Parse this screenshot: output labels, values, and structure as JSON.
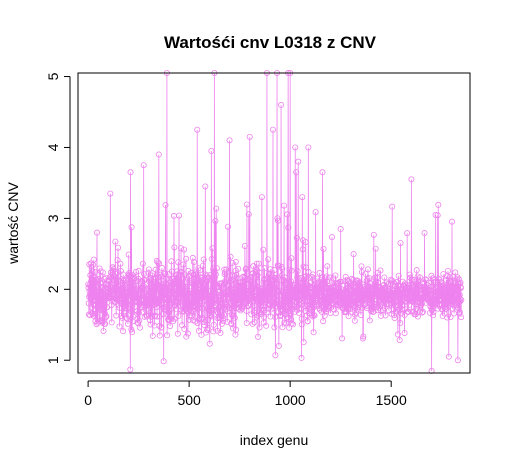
{
  "chart_data": {
    "type": "line",
    "title": "Wartośći cnv L0318 z CNV",
    "xlabel": "index genu",
    "ylabel": "wartość CNV",
    "xlim": [
      -50,
      1890
    ],
    "ylim": [
      0.82,
      5.05
    ],
    "x_ticks": [
      0,
      500,
      1000,
      1500
    ],
    "x_tick_labels": [
      "0",
      "500",
      "1000",
      "1500"
    ],
    "y_ticks": [
      1,
      2,
      3,
      4,
      5
    ],
    "y_tick_labels": [
      "1",
      "2",
      "3",
      "4",
      "5"
    ],
    "series": [
      {
        "n_points": 1847,
        "x_start": 1,
        "x_end": 1847,
        "baseline": 1.92,
        "color": "#ee82ee",
        "marker": "open-circle",
        "line": true,
        "notable_points": [
          {
            "x": 110,
            "y": 3.35
          },
          {
            "x": 210,
            "y": 3.65
          },
          {
            "x": 275,
            "y": 3.75
          },
          {
            "x": 350,
            "y": 3.9
          },
          {
            "x": 390,
            "y": 5.05
          },
          {
            "x": 540,
            "y": 4.25
          },
          {
            "x": 580,
            "y": 3.45
          },
          {
            "x": 610,
            "y": 3.95
          },
          {
            "x": 625,
            "y": 5.05
          },
          {
            "x": 700,
            "y": 4.1
          },
          {
            "x": 800,
            "y": 4.15
          },
          {
            "x": 860,
            "y": 3.3
          },
          {
            "x": 885,
            "y": 5.05
          },
          {
            "x": 915,
            "y": 4.25
          },
          {
            "x": 935,
            "y": 5.05
          },
          {
            "x": 955,
            "y": 4.6
          },
          {
            "x": 990,
            "y": 5.05
          },
          {
            "x": 1000,
            "y": 5.05
          },
          {
            "x": 1025,
            "y": 4.0
          },
          {
            "x": 1030,
            "y": 3.65
          },
          {
            "x": 1040,
            "y": 3.8
          },
          {
            "x": 1060,
            "y": 3.3
          },
          {
            "x": 1090,
            "y": 4.0
          },
          {
            "x": 1160,
            "y": 3.65
          },
          {
            "x": 1250,
            "y": 2.85
          },
          {
            "x": 1600,
            "y": 3.55
          },
          {
            "x": 1720,
            "y": 3.05
          },
          {
            "x": 1700,
            "y": 0.85
          },
          {
            "x": 1785,
            "y": 1.05
          },
          {
            "x": 1830,
            "y": 1.0
          }
        ]
      }
    ]
  }
}
